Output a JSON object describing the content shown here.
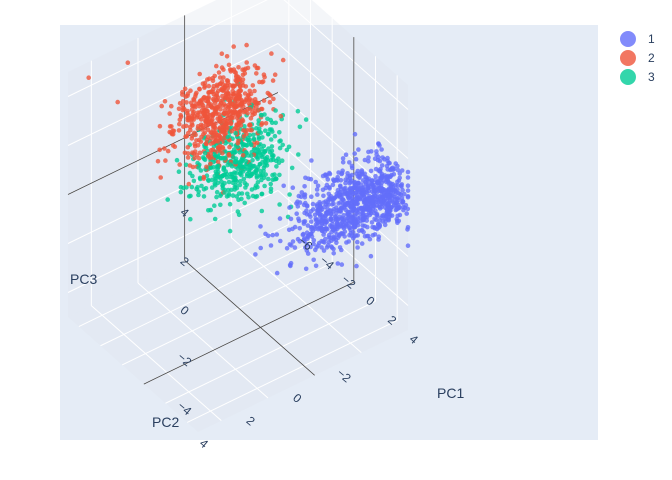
{
  "chart_data": {
    "type": "scatter",
    "projection": "3d",
    "axes": {
      "x": {
        "label": "PC1",
        "range": [
          -7,
          5
        ],
        "ticks": [
          -6,
          -4,
          -2,
          0,
          2,
          4
        ]
      },
      "y": {
        "label": "PC2",
        "range": [
          -4,
          5
        ],
        "ticks": [
          -2,
          0,
          2,
          4
        ]
      },
      "z": {
        "label": "PC3",
        "range": [
          -5,
          5
        ],
        "ticks": [
          -4,
          -2,
          0,
          2,
          4
        ]
      }
    },
    "grid": true,
    "legend": "top-right",
    "marker_opacity": 0.8,
    "series": [
      {
        "name": "1",
        "color": "#636efa",
        "count": 900,
        "center": {
          "x": 3.5,
          "y": -2.5,
          "z": 0.2
        },
        "spread": {
          "x": 1.0,
          "y": 1.4,
          "z": 0.6
        }
      },
      {
        "name": "2",
        "color": "#ef553b",
        "count": 600,
        "center": {
          "x": -1.5,
          "y": 1.0,
          "z": 3.6
        },
        "spread": {
          "x": 0.7,
          "y": 0.9,
          "z": 0.9
        }
      },
      {
        "name": "3",
        "color": "#00cc96",
        "count": 450,
        "center": {
          "x": -1.3,
          "y": 0.3,
          "z": 1.4
        },
        "spread": {
          "x": 0.9,
          "y": 0.9,
          "z": 0.8
        }
      }
    ],
    "outliers": {
      "series": "2",
      "points": [
        {
          "x": -5.0,
          "y": 3.8,
          "z": 4.0
        },
        {
          "x": -6.0,
          "y": 2.9,
          "z": 4.8
        },
        {
          "x": -6.6,
          "y": 4.3,
          "z": 4.6
        }
      ]
    }
  }
}
